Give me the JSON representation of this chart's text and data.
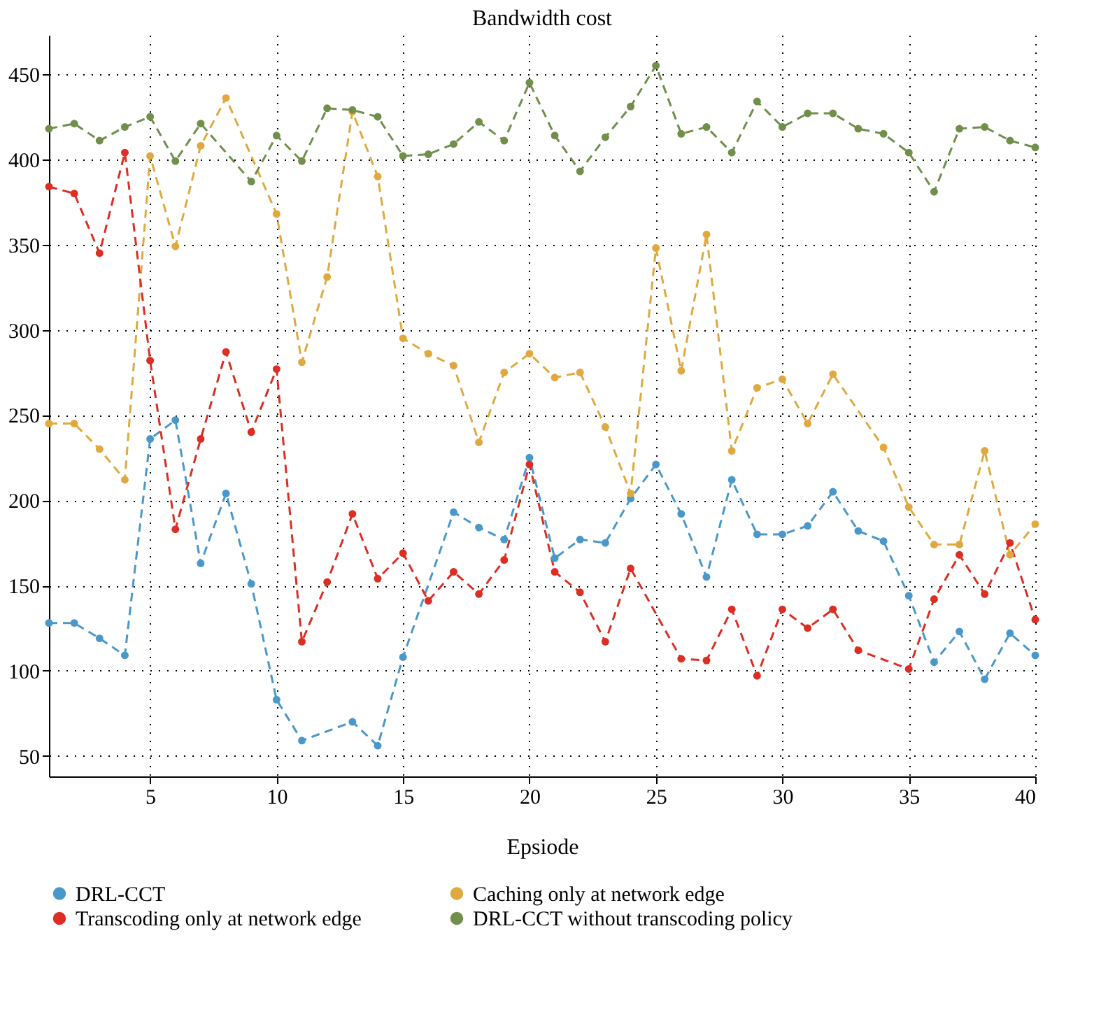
{
  "chart_data": {
    "type": "line",
    "title": "Bandwidth cost",
    "xlabel": "Epsiode",
    "series": [
      {
        "name": "DRL-CCT",
        "color": "#4a98c9",
        "x": [
          1,
          2,
          3,
          4,
          5,
          6,
          7,
          8,
          9,
          10,
          11,
          13,
          14,
          15,
          17,
          18,
          19,
          20,
          21,
          22,
          23,
          24,
          25,
          26,
          27,
          28,
          29,
          30,
          31,
          32,
          33,
          34,
          35,
          36,
          37,
          38,
          39,
          40
        ],
        "values": [
          128,
          128,
          119,
          109,
          236,
          247,
          163,
          204,
          151,
          83,
          59,
          70,
          56,
          108,
          193,
          184,
          177,
          225,
          166,
          177,
          175,
          201,
          221,
          192,
          155,
          212,
          180,
          180,
          185,
          205,
          182,
          176,
          144,
          105,
          123,
          95,
          122,
          109
        ]
      },
      {
        "name": "Caching only at network edge",
        "color": "#e0a940",
        "x": [
          1,
          2,
          3,
          4,
          5,
          6,
          7,
          8,
          10,
          11,
          12,
          13,
          14,
          15,
          16,
          17,
          18,
          19,
          20,
          21,
          22,
          23,
          24,
          25,
          26,
          27,
          28,
          29,
          30,
          31,
          32,
          34,
          35,
          36,
          37,
          38,
          39,
          40
        ],
        "values": [
          245,
          245,
          230,
          212,
          402,
          349,
          408,
          436,
          368,
          281,
          331,
          428,
          390,
          295,
          286,
          279,
          234,
          275,
          286,
          272,
          275,
          243,
          204,
          348,
          276,
          356,
          229,
          266,
          271,
          245,
          274,
          231,
          196,
          174,
          174,
          229,
          168,
          186
        ]
      },
      {
        "name": "Transcoding only at network edge",
        "color": "#dc2e22",
        "x": [
          1,
          2,
          3,
          4,
          5,
          6,
          7,
          8,
          9,
          10,
          11,
          12,
          13,
          14,
          15,
          16,
          17,
          18,
          19,
          20,
          21,
          22,
          23,
          24,
          26,
          27,
          28,
          29,
          30,
          31,
          32,
          33,
          35,
          36,
          37,
          38,
          39,
          40
        ],
        "values": [
          384,
          380,
          345,
          404,
          282,
          183,
          236,
          287,
          240,
          277,
          117,
          152,
          192,
          154,
          169,
          141,
          158,
          145,
          165,
          221,
          158,
          146,
          117,
          160,
          107,
          106,
          136,
          97,
          136,
          125,
          136,
          112,
          101,
          142,
          168,
          145,
          175,
          130
        ]
      },
      {
        "name": "DRL-CCT without transcoding policy",
        "color": "#6f8f4a",
        "x": [
          1,
          2,
          3,
          4,
          5,
          6,
          7,
          9,
          10,
          11,
          12,
          13,
          14,
          15,
          16,
          17,
          18,
          19,
          20,
          21,
          22,
          23,
          24,
          25,
          26,
          27,
          28,
          29,
          30,
          31,
          32,
          33,
          34,
          35,
          36,
          37,
          38,
          39,
          40
        ],
        "values": [
          418,
          421,
          411,
          419,
          425,
          399,
          421,
          387,
          414,
          399,
          430,
          429,
          425,
          402,
          403,
          409,
          422,
          411,
          445,
          414,
          393,
          413,
          431,
          455,
          415,
          419,
          404,
          434,
          419,
          427,
          427,
          418,
          415,
          404,
          381,
          418,
          419,
          411,
          407
        ]
      }
    ],
    "xlim": [
      1,
      40
    ],
    "xticks": [
      5,
      10,
      15,
      20,
      25,
      30,
      35,
      40
    ],
    "ylim": [
      38,
      473
    ],
    "yticks": [
      50,
      100,
      150,
      200,
      250,
      300,
      350,
      400,
      450
    ],
    "grid": true,
    "legend": "bottom",
    "marker": "circle",
    "line_style": "dashed"
  }
}
